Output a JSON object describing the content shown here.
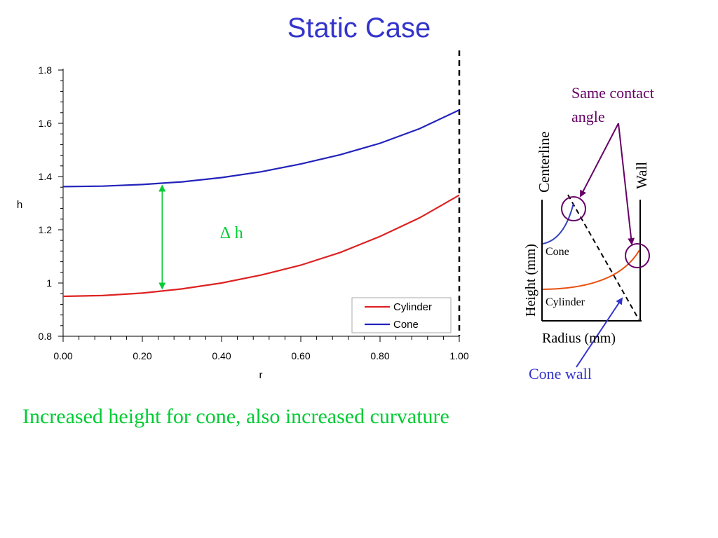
{
  "slide": {
    "title": "Static Case",
    "caption": "Increased height for cone, also increased curvature"
  },
  "chart_data": {
    "type": "line",
    "xlabel": "r",
    "ylabel": "h",
    "xlim": [
      0,
      1
    ],
    "ylim": [
      0.8,
      1.8
    ],
    "x_ticks": [
      "0.00",
      "0.20",
      "0.40",
      "0.60",
      "0.80",
      "1.00"
    ],
    "y_ticks": [
      "0.8",
      "1",
      "1.2",
      "1.4",
      "1.6",
      "1.8"
    ],
    "legend_position": "bottom-right",
    "series": [
      {
        "name": "Cylinder",
        "color": "#dd2222",
        "x": [
          0,
          0.1,
          0.2,
          0.3,
          0.4,
          0.5,
          0.6,
          0.7,
          0.8,
          0.9,
          1.0
        ],
        "y": [
          0.95,
          0.953,
          0.962,
          0.978,
          1.0,
          1.03,
          1.067,
          1.115,
          1.175,
          1.245,
          1.33
        ]
      },
      {
        "name": "Cone",
        "color": "#2222bb",
        "x": [
          0,
          0.1,
          0.2,
          0.3,
          0.4,
          0.5,
          0.6,
          0.7,
          0.8,
          0.9,
          1.0
        ],
        "y": [
          1.362,
          1.364,
          1.37,
          1.38,
          1.396,
          1.418,
          1.447,
          1.482,
          1.525,
          1.58,
          1.65
        ]
      }
    ],
    "annotations": {
      "delta_label": "∆ h",
      "delta_arrow_x": 0.25,
      "wall_line_x": 1.0
    }
  },
  "diagram": {
    "centerline_label": "Centerline",
    "wall_label": "Wall",
    "height_label": "Height (mm)",
    "radius_label": "Radius (mm)",
    "cone_label": "Cone",
    "cylinder_label": "Cylinder",
    "contact_angle_label_1": "Same contact",
    "contact_angle_label_2": "angle",
    "cone_wall_label": "Cone wall",
    "colors": {
      "annotation": "#660066",
      "cone_wall": "#3333cc",
      "cone_curve": "#3344bb",
      "cylinder_curve": "#e85010",
      "delta": "#00cc33"
    }
  }
}
